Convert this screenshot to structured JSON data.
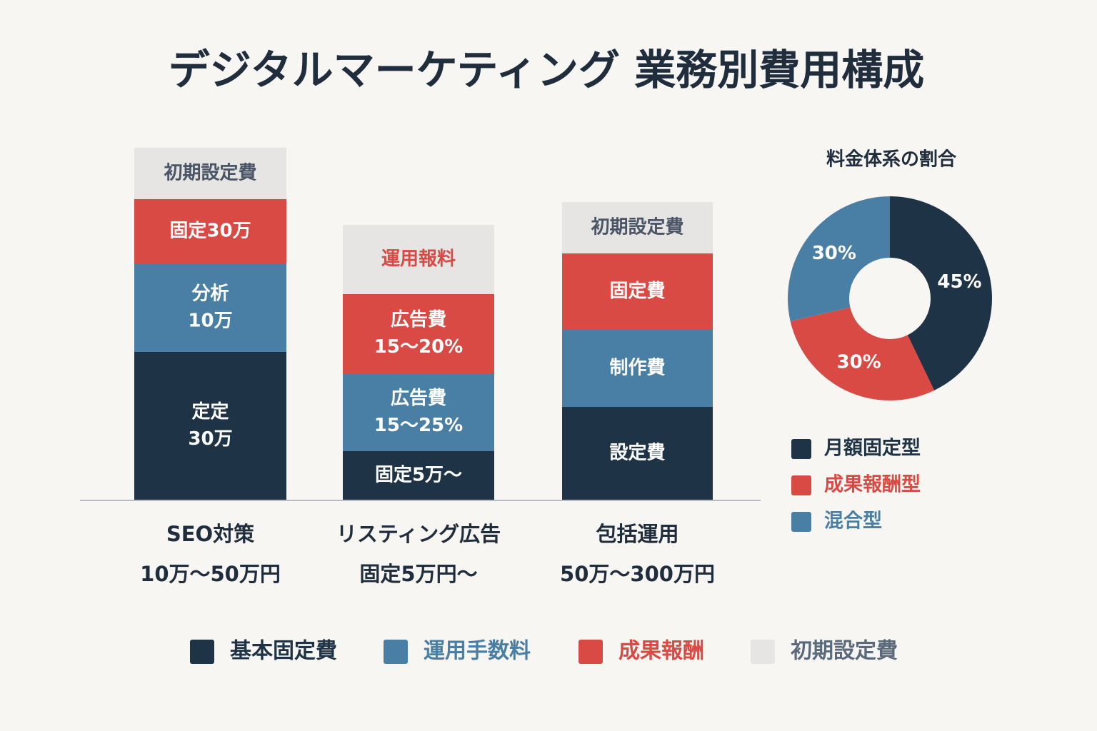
{
  "title": "デジタルマーケティング 業務別費用構成",
  "bars": [
    {
      "name": "SEO対策",
      "price": "10万〜50万円",
      "segments": [
        {
          "lines": [
            "初期設定費"
          ],
          "color": "#e6e5e3",
          "text_color": "#4a5566"
        },
        {
          "lines": [
            "固定30万"
          ],
          "color": "#d94a44",
          "text_color": "#ffffff"
        },
        {
          "lines": [
            "分析",
            "10万"
          ],
          "color": "#4a7fa5",
          "text_color": "#ffffff"
        },
        {
          "lines": [
            "定定",
            "30万"
          ],
          "color": "#1f3346",
          "text_color": "#ffffff"
        }
      ]
    },
    {
      "name": "リスティング広告",
      "price": "固定5万円〜",
      "segments": [
        {
          "lines": [
            "運用報料"
          ],
          "color": "#e6e5e3",
          "text_color": "#d94a44"
        },
        {
          "lines": [
            "広告費",
            "15〜20%"
          ],
          "color": "#d94a44",
          "text_color": "#ffffff"
        },
        {
          "lines": [
            "広告費",
            "15〜25%"
          ],
          "color": "#4a7fa5",
          "text_color": "#ffffff"
        },
        {
          "lines": [
            "固定5万〜"
          ],
          "color": "#1f3346",
          "text_color": "#ffffff"
        }
      ]
    },
    {
      "name": "包括運用",
      "price": "50万〜300万円",
      "segments": [
        {
          "lines": [
            "初期設定費"
          ],
          "color": "#e6e5e3",
          "text_color": "#4a5566"
        },
        {
          "lines": [
            "固定費"
          ],
          "color": "#d94a44",
          "text_color": "#ffffff"
        },
        {
          "lines": [
            "制作費"
          ],
          "color": "#4a7fa5",
          "text_color": "#ffffff"
        },
        {
          "lines": [
            "設定費"
          ],
          "color": "#1f3346",
          "text_color": "#ffffff"
        }
      ]
    }
  ],
  "legend": [
    {
      "name": "基本固定費",
      "color": "#1f3346",
      "text_color": "#1f3346"
    },
    {
      "name": "運用手数料",
      "color": "#4a7fa5",
      "text_color": "#4a7fa5"
    },
    {
      "name": "成果報酬",
      "color": "#d94a44",
      "text_color": "#d94a44"
    },
    {
      "name": "初期設定費",
      "color": "#e6e5e3",
      "text_color": "#5a6a7a"
    }
  ],
  "chart_data": {
    "type": "donut",
    "title": "料金体系の割合",
    "categories": [
      "月額固定型",
      "成果報酬型",
      "混合型"
    ],
    "values": [
      45,
      30,
      30
    ],
    "value_labels": [
      "45%",
      "30%",
      "30%"
    ],
    "colors": [
      "#1f3346",
      "#d94a44",
      "#4a7fa5"
    ]
  }
}
